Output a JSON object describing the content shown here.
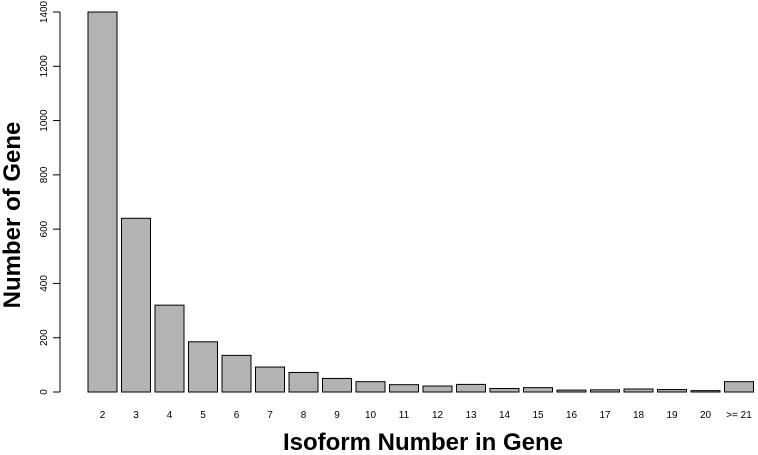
{
  "chart_data": {
    "type": "bar",
    "title": "",
    "xlabel": "Isoform Number in Gene",
    "ylabel": "Number of Gene",
    "categories": [
      "2",
      "3",
      "4",
      "5",
      "6",
      "7",
      "8",
      "9",
      "10",
      "11",
      "12",
      "13",
      "14",
      "15",
      "16",
      "17",
      "18",
      "19",
      "20",
      ">= 21"
    ],
    "values": [
      1400,
      640,
      320,
      185,
      135,
      92,
      72,
      50,
      38,
      27,
      22,
      28,
      13,
      16,
      7,
      8,
      11,
      9,
      5,
      38
    ],
    "ylim": [
      0,
      1400
    ],
    "yticks": [
      0,
      200,
      400,
      600,
      800,
      1000,
      1200,
      1400
    ],
    "grid": false,
    "colors": {
      "bar_fill": "#b3b3b3",
      "bar_stroke": "#000000"
    }
  }
}
